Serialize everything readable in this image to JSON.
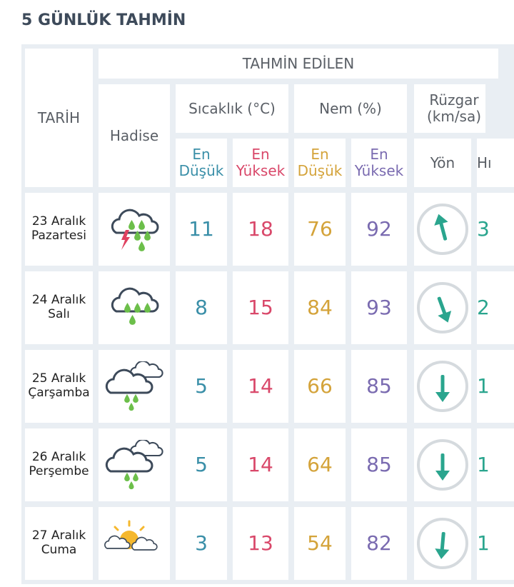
{
  "header": {
    "title": "5 GÜNLÜK TAHMİN"
  },
  "table": {
    "group_header": "TAHMİN EDİLEN",
    "date_header": "TARİH",
    "event_header": "Hadise",
    "temp_header": "Sıcaklık (°C)",
    "humidity_header": "Nem (%)",
    "wind_header": "Rüzgar (km/sa)",
    "low_label": "En Düşük",
    "high_label": "En Yüksek",
    "direction_header": "Yön",
    "speed_header": "Hı",
    "rows": [
      {
        "date": "23 Aralık",
        "day": "Pazartesi",
        "temp_low": 11,
        "temp_high": 18,
        "hum_low": 76,
        "hum_high": 92,
        "speed": "3"
      },
      {
        "date": "24 Aralık",
        "day": "Salı",
        "temp_low": 8,
        "temp_high": 15,
        "hum_low": 84,
        "hum_high": 93,
        "speed": "2"
      },
      {
        "date": "25 Aralık",
        "day": "Çarşamba",
        "temp_low": 5,
        "temp_high": 14,
        "hum_low": 66,
        "hum_high": 85,
        "speed": "1"
      },
      {
        "date": "26 Aralık",
        "day": "Perşembe",
        "temp_low": 5,
        "temp_high": 14,
        "hum_low": 64,
        "hum_high": 85,
        "speed": "1"
      },
      {
        "date": "27 Aralık",
        "day": "Cuma",
        "temp_low": 3,
        "temp_high": 13,
        "hum_low": 54,
        "hum_high": 82,
        "speed": "1"
      }
    ]
  }
}
